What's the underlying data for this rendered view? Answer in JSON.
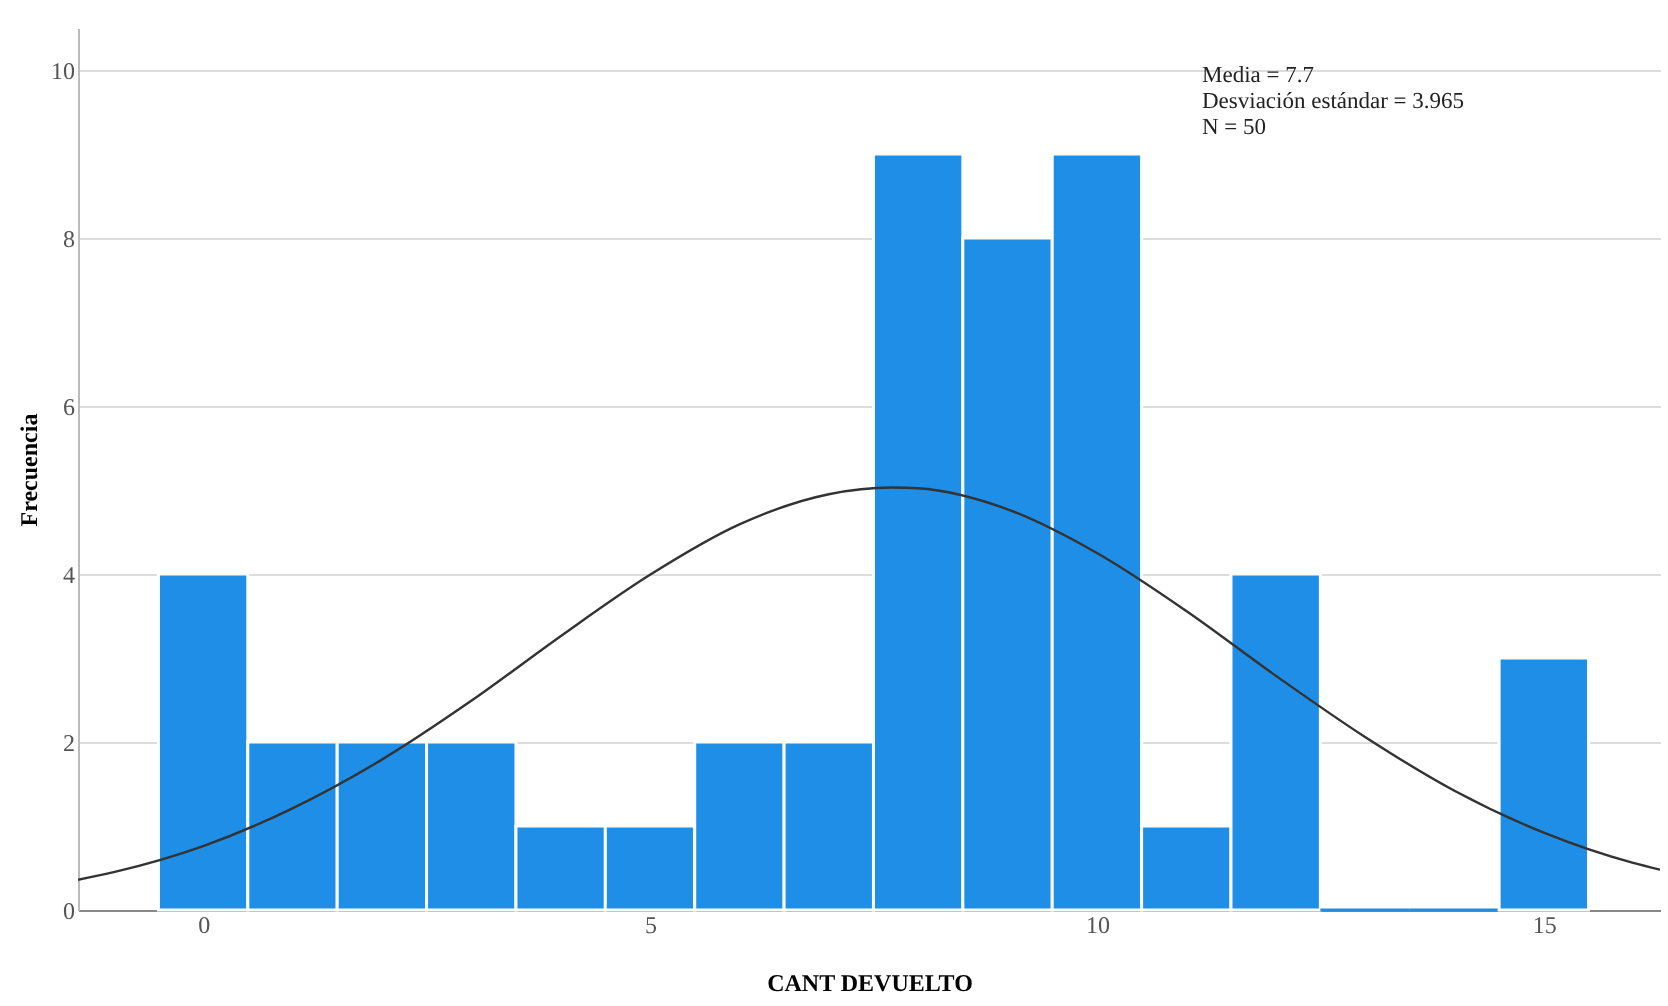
{
  "chart_data": {
    "type": "histogram",
    "xlabel": "CANT DEVUELTO",
    "ylabel": "Frecuencia",
    "annotations": [
      "Media = 7.7",
      "Desviación estándar = 3.965",
      "N = 50"
    ],
    "bins": [
      -0.5,
      0.5,
      1.5,
      2.5,
      3.5,
      4.5,
      5.5,
      6.5,
      7.5,
      8.5,
      9.5,
      10.5,
      11.5,
      12.5,
      13.5,
      14.5,
      15.5
    ],
    "series": [
      {
        "type": "histogram",
        "color": "#1e8ee6",
        "values": [
          4,
          2,
          2,
          2,
          1,
          1,
          2,
          2,
          9,
          8,
          9,
          1,
          4,
          0,
          0,
          3
        ]
      },
      {
        "type": "line",
        "color": "#333333",
        "x": [
          -1.4,
          -1,
          0,
          1,
          2,
          3,
          4,
          5,
          6,
          7,
          7.7,
          8,
          9,
          10,
          11,
          12,
          13,
          14,
          15,
          16,
          16.3
        ],
        "values": [
          0.36,
          0.45,
          0.76,
          1.21,
          1.79,
          2.49,
          3.26,
          3.99,
          4.59,
          4.95,
          5.03,
          5.02,
          4.77,
          4.25,
          3.56,
          2.79,
          2.06,
          1.42,
          0.92,
          0.56,
          0.48
        ]
      }
    ],
    "xlim": [
      -1.4,
      16.3
    ],
    "xticks": [
      0,
      5,
      10,
      15
    ],
    "ylim": [
      0,
      10.5
    ],
    "yticks": [
      0,
      2,
      4,
      6,
      8,
      10
    ],
    "grid": "y"
  }
}
